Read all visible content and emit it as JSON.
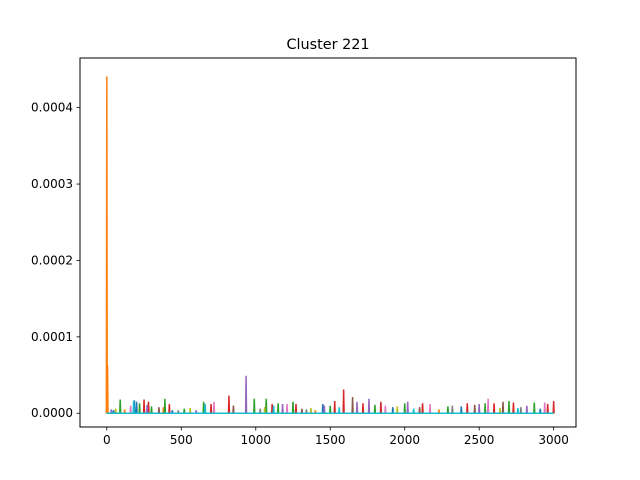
{
  "chart_data": {
    "type": "line",
    "title": "Cluster 221",
    "xlabel": "",
    "ylabel": "",
    "xlim": [
      -180,
      3150
    ],
    "ylim": [
      -1.8e-05,
      0.000465
    ],
    "xticks": [
      0,
      500,
      1000,
      1500,
      2000,
      2500,
      3000
    ],
    "xtick_labels": [
      "0",
      "500",
      "1000",
      "1500",
      "2000",
      "2500",
      "3000"
    ],
    "yticks": [
      0.0,
      0.0001,
      0.0002,
      0.0003,
      0.0004
    ],
    "ytick_labels": [
      "0.0000",
      "0.0001",
      "0.0002",
      "0.0003",
      "0.0004"
    ],
    "grid": false,
    "legend": "none",
    "series": [
      {
        "color": "#1f77b4",
        "spikes": [
          [
            0,
            8.5e-06
          ],
          [
            45,
            4e-06
          ],
          [
            185,
            1.7e-05
          ],
          [
            200,
            1.5e-05
          ],
          [
            440,
            4e-06
          ],
          [
            1450,
            1.2e-05
          ],
          [
            1920,
            8e-06
          ],
          [
            2380,
            9e-06
          ],
          [
            2910,
            6e-06
          ]
        ]
      },
      {
        "color": "#ff7f0e",
        "spikes": [
          [
            0,
            0.000441
          ],
          [
            5,
            6.2e-05
          ],
          [
            120,
            5e-06
          ],
          [
            380,
            8e-06
          ],
          [
            1400,
            4e-06
          ],
          [
            2230,
            5e-06
          ]
        ]
      },
      {
        "color": "#2ca02c",
        "spikes": [
          [
            90,
            1.8e-05
          ],
          [
            220,
            1.3e-05
          ],
          [
            300,
            9e-06
          ],
          [
            390,
            1.9e-05
          ],
          [
            520,
            6e-06
          ],
          [
            650,
            1.5e-05
          ],
          [
            990,
            1.9e-05
          ],
          [
            1070,
            1.9e-05
          ],
          [
            1150,
            1.3e-05
          ],
          [
            1250,
            1.5e-05
          ],
          [
            1500,
            1e-05
          ],
          [
            1800,
            1.1e-05
          ],
          [
            2000,
            1.3e-05
          ],
          [
            2290,
            9e-06
          ],
          [
            2540,
            1.3e-05
          ],
          [
            2700,
            1.6e-05
          ],
          [
            2870,
            1.4e-05
          ]
        ]
      },
      {
        "color": "#d62728",
        "spikes": [
          [
            250,
            1.8e-05
          ],
          [
            280,
            1.5e-05
          ],
          [
            420,
            1.2e-05
          ],
          [
            700,
            1.2e-05
          ],
          [
            820,
            2.3e-05
          ],
          [
            1110,
            1.2e-05
          ],
          [
            1270,
            1.2e-05
          ],
          [
            1530,
            1.6e-05
          ],
          [
            1590,
            3.1e-05
          ],
          [
            1720,
            1.3e-05
          ],
          [
            1840,
            1.5e-05
          ],
          [
            2120,
            1.3e-05
          ],
          [
            2420,
            1.3e-05
          ],
          [
            2600,
            1.3e-05
          ],
          [
            2730,
            1.4e-05
          ],
          [
            2960,
            1.2e-05
          ],
          [
            3000,
            1.6e-05
          ]
        ]
      },
      {
        "color": "#9467bd",
        "spikes": [
          [
            30,
            5e-06
          ],
          [
            270,
            1.1e-05
          ],
          [
            600,
            4e-06
          ],
          [
            935,
            4.9e-05
          ],
          [
            1180,
            1.2e-05
          ],
          [
            1460,
            1e-05
          ],
          [
            1680,
            1.5e-05
          ],
          [
            1760,
            1.9e-05
          ],
          [
            2020,
            1.5e-05
          ],
          [
            2500,
            1.2e-05
          ],
          [
            2820,
            1e-05
          ]
        ]
      },
      {
        "color": "#8c564b",
        "spikes": [
          [
            350,
            8e-06
          ],
          [
            850,
            1e-05
          ],
          [
            1310,
            6e-06
          ],
          [
            1650,
            2.1e-05
          ],
          [
            2100,
            8e-06
          ],
          [
            2470,
            1.1e-05
          ],
          [
            2660,
            1.5e-05
          ]
        ]
      },
      {
        "color": "#e377c2",
        "spikes": [
          [
            160,
            1e-05
          ],
          [
            720,
            1.5e-05
          ],
          [
            1210,
            1.2e-05
          ],
          [
            1870,
            1e-05
          ],
          [
            2170,
            1.2e-05
          ],
          [
            2560,
            1.9e-05
          ],
          [
            2940,
            1.4e-05
          ]
        ]
      },
      {
        "color": "#7f7f7f",
        "spikes": [
          [
            480,
            4e-06
          ],
          [
            1030,
            6e-06
          ],
          [
            1340,
            5e-06
          ],
          [
            2320,
            1e-05
          ],
          [
            2780,
            8e-06
          ]
        ]
      },
      {
        "color": "#bcbd22",
        "spikes": [
          [
            60,
            6e-06
          ],
          [
            560,
            7e-06
          ],
          [
            1060,
            8e-06
          ],
          [
            1370,
            7e-06
          ],
          [
            1950,
            9e-06
          ],
          [
            2640,
            7e-06
          ]
        ]
      },
      {
        "color": "#17becf",
        "spikes": [
          [
            180,
            1.6e-05
          ],
          [
            660,
            1.2e-05
          ],
          [
            1120,
            1e-05
          ],
          [
            1560,
            8e-06
          ],
          [
            2060,
            6e-06
          ],
          [
            2760,
            7e-06
          ]
        ]
      }
    ]
  }
}
